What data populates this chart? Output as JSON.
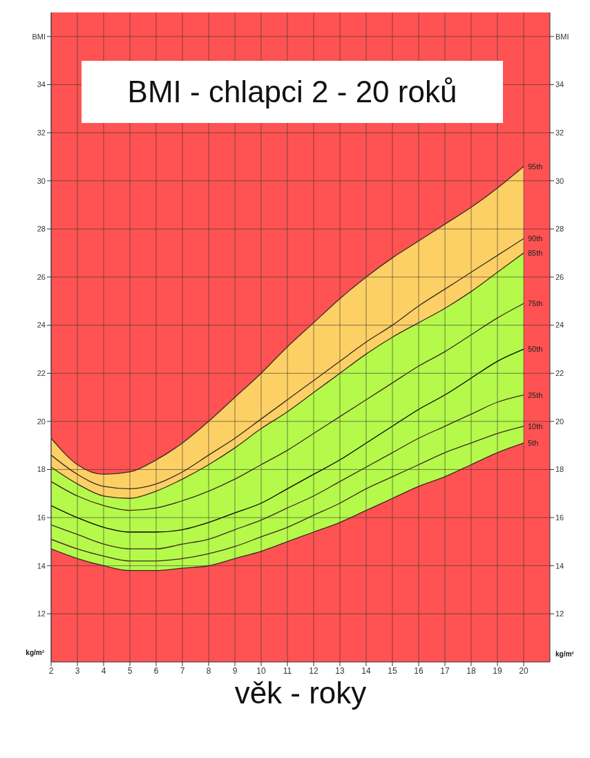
{
  "chart_data": {
    "type": "line",
    "title": "BMI - chlapci 2 - 20 roků",
    "xlabel": "věk - roky",
    "ylabel": "kg/m²",
    "y2label": "kg/m²",
    "x": [
      2,
      3,
      4,
      5,
      6,
      7,
      8,
      9,
      10,
      11,
      12,
      13,
      14,
      15,
      16,
      17,
      18,
      19,
      20
    ],
    "xlim": [
      2,
      21
    ],
    "xticks": [
      2,
      3,
      4,
      5,
      6,
      7,
      8,
      9,
      10,
      11,
      12,
      13,
      14,
      15,
      16,
      17,
      18,
      19,
      20
    ],
    "ylim": [
      10,
      37
    ],
    "yticks": [
      12,
      14,
      16,
      18,
      20,
      22,
      24,
      26,
      28,
      30,
      32,
      34,
      {
        "value": 36,
        "label": "BMI"
      }
    ],
    "y2lim": [
      10,
      37
    ],
    "y2ticks": [
      12,
      14,
      16,
      18,
      20,
      22,
      24,
      26,
      28,
      30,
      32,
      34,
      {
        "value": 36,
        "label": "BMI"
      }
    ],
    "grid": true,
    "legend": false,
    "marker": "none",
    "line_style": "solid",
    "bands": [
      {
        "axis": "y",
        "from": 10,
        "to": 37,
        "color": "#ff5252"
      }
    ],
    "series": [
      {
        "name": "95th",
        "type": "area",
        "color": "#fdd065",
        "values": [
          19.3,
          18.2,
          17.8,
          17.9,
          18.4,
          19.1,
          20.0,
          21.0,
          22.0,
          23.1,
          24.1,
          25.1,
          26.0,
          26.8,
          27.5,
          28.2,
          28.9,
          29.7,
          30.6
        ]
      },
      {
        "name": "90th",
        "color": "#3a2a22",
        "values": [
          18.6,
          17.8,
          17.3,
          17.2,
          17.4,
          17.9,
          18.6,
          19.3,
          20.1,
          20.9,
          21.7,
          22.5,
          23.3,
          24.0,
          24.8,
          25.5,
          26.2,
          26.9,
          27.6
        ]
      },
      {
        "name": "85th",
        "type": "area",
        "color": "#b5f94b",
        "values": [
          18.1,
          17.4,
          16.9,
          16.8,
          17.1,
          17.6,
          18.2,
          18.9,
          19.7,
          20.4,
          21.2,
          22.0,
          22.8,
          23.5,
          24.1,
          24.7,
          25.4,
          26.2,
          27.0
        ]
      },
      {
        "name": "75th",
        "color": "#3a2a22",
        "values": [
          17.5,
          16.9,
          16.5,
          16.3,
          16.4,
          16.7,
          17.1,
          17.6,
          18.2,
          18.8,
          19.5,
          20.2,
          20.9,
          21.6,
          22.3,
          22.9,
          23.6,
          24.3,
          24.9
        ]
      },
      {
        "name": "50th",
        "color": "#000000",
        "values": [
          16.5,
          16.0,
          15.6,
          15.4,
          15.4,
          15.5,
          15.8,
          16.2,
          16.6,
          17.2,
          17.8,
          18.4,
          19.1,
          19.8,
          20.5,
          21.1,
          21.8,
          22.5,
          23.0
        ]
      },
      {
        "name": "25th",
        "color": "#3a2a22",
        "values": [
          15.7,
          15.3,
          14.9,
          14.7,
          14.7,
          14.9,
          15.1,
          15.5,
          15.9,
          16.4,
          16.9,
          17.5,
          18.1,
          18.7,
          19.3,
          19.8,
          20.3,
          20.8,
          21.1
        ]
      },
      {
        "name": "10th",
        "color": "#3a2a22",
        "values": [
          15.1,
          14.7,
          14.4,
          14.2,
          14.2,
          14.3,
          14.5,
          14.8,
          15.2,
          15.6,
          16.1,
          16.6,
          17.2,
          17.7,
          18.2,
          18.7,
          19.1,
          19.5,
          19.8
        ]
      },
      {
        "name": "5th",
        "type": "area",
        "color": "#ff5252",
        "values": [
          14.7,
          14.3,
          14.0,
          13.8,
          13.8,
          13.9,
          14.0,
          14.3,
          14.6,
          15.0,
          15.4,
          15.8,
          16.3,
          16.8,
          17.3,
          17.7,
          18.2,
          18.7,
          19.1
        ]
      }
    ]
  }
}
